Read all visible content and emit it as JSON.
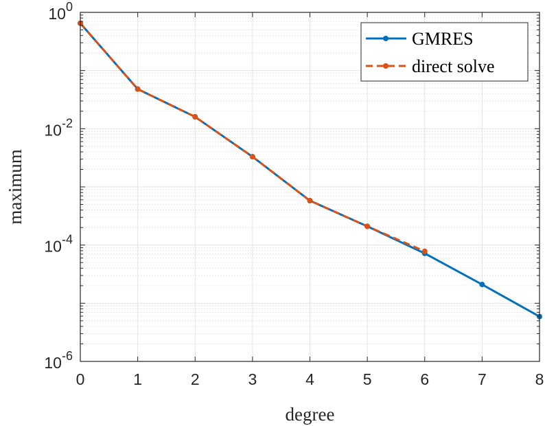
{
  "chart_data": {
    "type": "line",
    "xlabel": "degree",
    "ylabel": "maximum",
    "y_scale": "log",
    "xlim": [
      0,
      8
    ],
    "ylim": [
      1e-06,
      1
    ],
    "x_ticks": [
      "0",
      "1",
      "2",
      "3",
      "4",
      "5",
      "6",
      "7",
      "8"
    ],
    "y_ticks": [
      {
        "base": "10",
        "exp": "0"
      },
      {
        "base": "10",
        "exp": "-2"
      },
      {
        "base": "10",
        "exp": "-4"
      },
      {
        "base": "10",
        "exp": "-6"
      }
    ],
    "grid": true,
    "minor_grid": true,
    "legend_position": "top-right",
    "series": [
      {
        "name": "GMRES",
        "color": "#0072BD",
        "line_style": "solid",
        "marker": "dot",
        "x": [
          0,
          1,
          2,
          3,
          4,
          5,
          6,
          7,
          8
        ],
        "values": [
          0.65,
          0.048,
          0.016,
          0.0033,
          0.00058,
          0.00021,
          7.2e-05,
          2.1e-05,
          5.9e-06
        ]
      },
      {
        "name": "direct solve",
        "color": "#D95319",
        "line_style": "dashed",
        "marker": "dot",
        "x": [
          0,
          1,
          2,
          3,
          4,
          5,
          6
        ],
        "values": [
          0.65,
          0.048,
          0.016,
          0.0033,
          0.00058,
          0.00021,
          7.8e-05
        ]
      }
    ]
  }
}
